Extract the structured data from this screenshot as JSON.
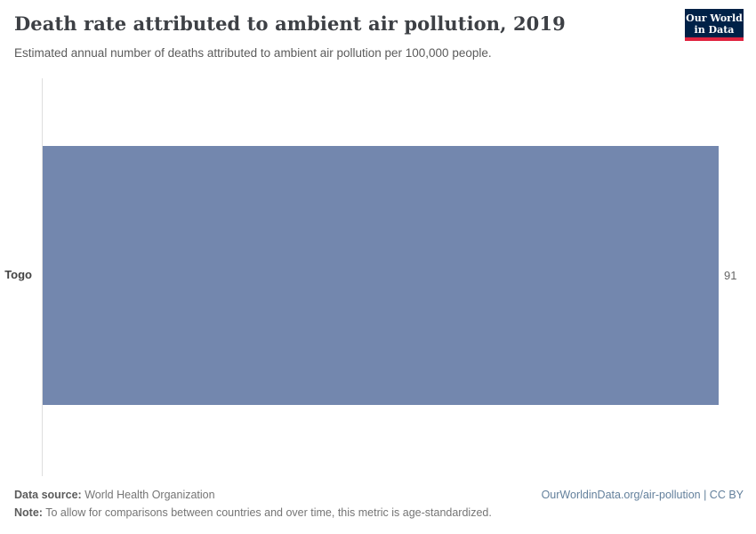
{
  "header": {
    "title": "Death rate attributed to ambient air pollution, 2019",
    "subtitle": "Estimated annual number of deaths attributed to ambient air pollution per 100,000 people.",
    "logo": {
      "line1": "Our World",
      "line2": "in Data",
      "background_color": "#002147",
      "accent_color": "#e0233f"
    }
  },
  "chart_data": {
    "type": "bar",
    "orientation": "horizontal",
    "title": "Death rate attributed to ambient air pollution, 2019",
    "categories": [
      "Togo"
    ],
    "values": [
      91
    ],
    "value_labels": [
      "91"
    ],
    "xlabel": "",
    "ylabel": "",
    "xlim": [
      0,
      91
    ],
    "grid": false,
    "legend": "none",
    "bar_color": "#7387ae"
  },
  "footer": {
    "source_label": "Data source:",
    "source_text": "World Health Organization",
    "note_label": "Note:",
    "note_text": "To allow for comparisons between countries and over time, this metric is age-standardized.",
    "link_text": "OurWorldinData.org/air-pollution | CC BY"
  }
}
